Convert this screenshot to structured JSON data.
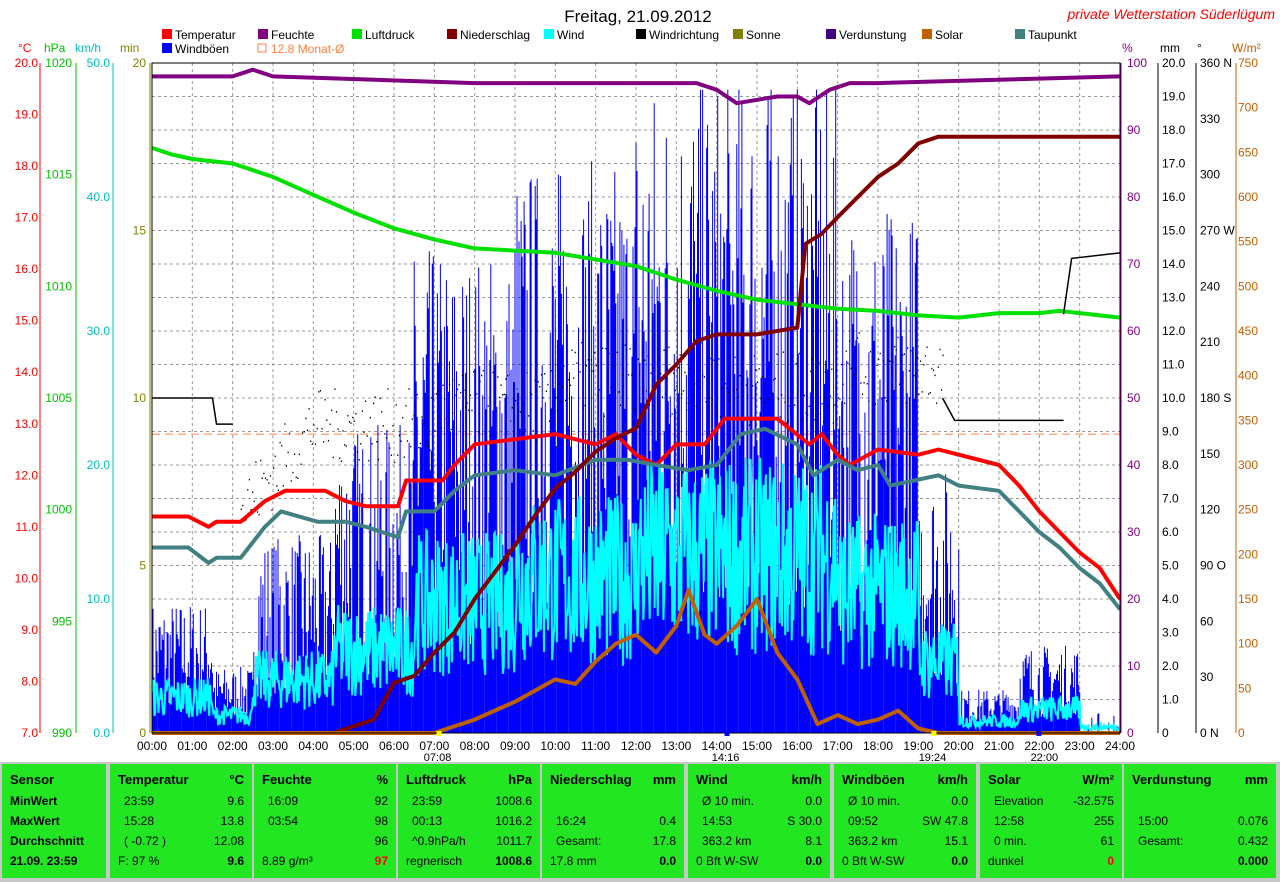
{
  "title": "Freitag, 21.09.2012",
  "station": "private Wetterstation Süderlügum",
  "legend": [
    {
      "label": "Temperatur",
      "color": "#ff0000"
    },
    {
      "label": "Feuchte",
      "color": "#800080"
    },
    {
      "label": "Luftdruck",
      "color": "#00e000"
    },
    {
      "label": "Niederschlag",
      "color": "#800000"
    },
    {
      "label": "Wind",
      "color": "#00ffff"
    },
    {
      "label": "Windrichtung",
      "color": "#000000"
    },
    {
      "label": "Sonne",
      "color": "#808000"
    },
    {
      "label": "Verdunstung",
      "color": "#400080"
    },
    {
      "label": "Solar",
      "color": "#c06000"
    },
    {
      "label": "Taupunkt",
      "color": "#408080"
    },
    {
      "label": "Windböen",
      "color": "#0000ff"
    },
    {
      "label": "12.8 Monat-Ø",
      "color": "#ff8040"
    }
  ],
  "chart_data": {
    "type": "line",
    "x_ticks": [
      "00:00",
      "01:00",
      "02:00",
      "03:00",
      "04:00",
      "05:00",
      "06:00",
      "07:00",
      "08:00",
      "09:00",
      "10:00",
      "11:00",
      "12:00",
      "13:00",
      "14:00",
      "15:00",
      "16:00",
      "17:00",
      "18:00",
      "19:00",
      "20:00",
      "21:00",
      "22:00",
      "23:00",
      "24:00"
    ],
    "x_markers": [
      {
        "label": "07:08",
        "x": 7.13
      },
      {
        "label": "14:16",
        "x": 14.27
      },
      {
        "label": "19:24",
        "x": 19.4
      },
      {
        "label": "22:00",
        "x": 22.0
      }
    ],
    "axes": {
      "temperature": {
        "unit": "°C",
        "ticks": [
          "7.0",
          "8.0",
          "9.0",
          "10.0",
          "11.0",
          "12.0",
          "13.0",
          "14.0",
          "15.0",
          "16.0",
          "17.0",
          "18.0",
          "19.0",
          "20.0"
        ],
        "range": [
          7,
          20
        ],
        "color": "#ff0000"
      },
      "pressure": {
        "unit": "hPa",
        "ticks": [
          "990",
          "995",
          "1000",
          "1005",
          "1010",
          "1015",
          "1020"
        ],
        "range": [
          990,
          1020
        ],
        "color": "#00c000"
      },
      "wind": {
        "unit": "km/h",
        "ticks": [
          "0.0",
          "10.0",
          "20.0",
          "30.0",
          "40.0",
          "50.0"
        ],
        "range": [
          0,
          50
        ],
        "color": "#00c0c0"
      },
      "sun": {
        "unit": "min",
        "ticks": [
          "0",
          "5",
          "10",
          "15",
          "20"
        ],
        "range": [
          0,
          20
        ],
        "color": "#808000"
      },
      "humidity": {
        "unit": "%",
        "ticks": [
          "0",
          "10",
          "20",
          "30",
          "40",
          "50",
          "60",
          "70",
          "80",
          "90",
          "100"
        ],
        "range": [
          0,
          100
        ],
        "color": "#800080"
      },
      "rain": {
        "unit": "mm",
        "ticks": [
          "0",
          "1.0",
          "2.0",
          "3.0",
          "4.0",
          "5.0",
          "6.0",
          "7.0",
          "8.0",
          "9.0",
          "10.0",
          "11.0",
          "12.0",
          "13.0",
          "14.0",
          "15.0",
          "16.0",
          "17.0",
          "18.0",
          "19.0",
          "20.0"
        ],
        "range": [
          0,
          20
        ],
        "color": "#000000"
      },
      "direction": {
        "unit": "°",
        "ticks": [
          "0 N",
          "30",
          "60",
          "90 O",
          "120",
          "150",
          "180 S",
          "210",
          "240",
          "270 W",
          "300",
          "330",
          "360 N"
        ],
        "range": [
          0,
          360
        ],
        "color": "#000000"
      },
      "solar": {
        "unit": "W/m²",
        "ticks": [
          "0",
          "50",
          "100",
          "150",
          "200",
          "250",
          "300",
          "350",
          "400",
          "450",
          "500",
          "550",
          "600",
          "650",
          "700",
          "750"
        ],
        "range": [
          0,
          750
        ],
        "color": "#c06000"
      }
    },
    "series": [
      {
        "name": "Temperatur",
        "axis": "temperature",
        "color": "#ff0000",
        "x": [
          0,
          0.9,
          1.4,
          1.6,
          2.2,
          2.8,
          3.3,
          4.3,
          4.8,
          5.3,
          6.1,
          6.3,
          7.2,
          7.5,
          8.0,
          10.0,
          11.0,
          11.5,
          12.0,
          12.5,
          13.0,
          13.7,
          14.2,
          15.5,
          16.3,
          16.6,
          17.0,
          17.3,
          18.0,
          19.0,
          19.5,
          20.0,
          21.0,
          21.5,
          22.0,
          22.5,
          23.0,
          23.5,
          24.0
        ],
        "values": [
          11.2,
          11.2,
          11.0,
          11.1,
          11.1,
          11.5,
          11.7,
          11.7,
          11.5,
          11.4,
          11.4,
          11.9,
          11.9,
          12.2,
          12.6,
          12.8,
          12.6,
          12.8,
          12.4,
          12.2,
          12.6,
          12.6,
          13.1,
          13.1,
          12.6,
          12.8,
          12.4,
          12.2,
          12.5,
          12.4,
          12.5,
          12.4,
          12.2,
          11.8,
          11.3,
          10.9,
          10.5,
          10.2,
          9.6
        ]
      },
      {
        "name": "Taupunkt",
        "axis": "temperature",
        "color": "#408080",
        "x": [
          0,
          0.9,
          1.4,
          1.6,
          2.2,
          2.8,
          3.2,
          4.1,
          4.8,
          5.3,
          6.1,
          6.3,
          7.0,
          7.5,
          8.0,
          9.0,
          10.0,
          11.0,
          11.8,
          12.5,
          13.3,
          14.0,
          14.6,
          15.2,
          16.0,
          16.4,
          17.0,
          17.5,
          18.0,
          18.3,
          19.5,
          20.0,
          21.0,
          21.5,
          22.0,
          22.5,
          23.0,
          23.5,
          24.0
        ],
        "values": [
          10.6,
          10.6,
          10.3,
          10.4,
          10.4,
          11.0,
          11.3,
          11.1,
          11.1,
          11.0,
          10.8,
          11.3,
          11.3,
          11.7,
          12.0,
          12.1,
          12.0,
          12.3,
          12.3,
          12.2,
          12.1,
          12.2,
          12.8,
          12.9,
          12.6,
          12.0,
          12.3,
          12.1,
          12.2,
          11.8,
          12.0,
          11.8,
          11.7,
          11.3,
          10.9,
          10.6,
          10.2,
          9.9,
          9.4
        ]
      },
      {
        "name": "Feuchte",
        "axis": "humidity",
        "color": "#800080",
        "x": [
          0,
          2.0,
          2.5,
          3.0,
          8.0,
          13.5,
          14.0,
          14.5,
          15.5,
          16.0,
          16.3,
          16.8,
          17.3,
          18.0,
          24.0
        ],
        "values": [
          98,
          98,
          99,
          98,
          97,
          97,
          96,
          94,
          95,
          95,
          94,
          96,
          97,
          97,
          98
        ]
      },
      {
        "name": "Luftdruck",
        "axis": "pressure",
        "color": "#00e000",
        "x": [
          0,
          0.5,
          1.0,
          2.0,
          3.0,
          4.0,
          5.0,
          6.0,
          7.0,
          8.0,
          9.0,
          10.0,
          11.0,
          12.0,
          12.5,
          13.0,
          14.0,
          15.0,
          16.0,
          17.0,
          18.0,
          19.0,
          20.0,
          21.0,
          22.0,
          22.5,
          23.0,
          24.0
        ],
        "values": [
          1016.2,
          1015.9,
          1015.7,
          1015.5,
          1014.9,
          1014.1,
          1013.3,
          1012.6,
          1012.1,
          1011.7,
          1011.6,
          1011.5,
          1011.2,
          1010.9,
          1010.6,
          1010.3,
          1009.8,
          1009.4,
          1009.2,
          1009.0,
          1008.9,
          1008.7,
          1008.6,
          1008.8,
          1008.8,
          1008.9,
          1008.8,
          1008.6
        ]
      },
      {
        "name": "Niederschlag",
        "axis": "rain",
        "color": "#800000",
        "x": [
          0,
          4.5,
          5.0,
          5.5,
          6.0,
          6.5,
          7.0,
          7.5,
          8.0,
          8.5,
          9.0,
          9.5,
          10.0,
          10.5,
          11.0,
          11.5,
          12.0,
          12.5,
          13.0,
          13.5,
          14.0,
          15.0,
          16.0,
          16.2,
          16.6,
          17.0,
          17.5,
          18.0,
          18.5,
          19.0,
          19.5,
          24.0
        ],
        "values": [
          0,
          0,
          0.2,
          0.4,
          1.5,
          1.7,
          2.4,
          3.0,
          4.0,
          4.8,
          5.6,
          6.5,
          7.3,
          7.8,
          8.4,
          8.8,
          9.1,
          10.4,
          11.0,
          11.7,
          11.9,
          11.9,
          12.1,
          14.6,
          14.9,
          15.4,
          16.0,
          16.6,
          17.0,
          17.6,
          17.8,
          17.8
        ]
      },
      {
        "name": "Solar",
        "axis": "solar",
        "color": "#c06000",
        "x": [
          0,
          7.0,
          8.0,
          9.0,
          10.0,
          10.5,
          11.0,
          11.5,
          12.0,
          12.5,
          13.0,
          13.3,
          13.7,
          14.0,
          14.5,
          15.0,
          15.5,
          16.0,
          16.2,
          16.5,
          17.0,
          17.5,
          18.0,
          18.5,
          19.0,
          19.5,
          24.0
        ],
        "values": [
          0,
          0,
          15,
          35,
          60,
          55,
          80,
          100,
          110,
          90,
          120,
          160,
          110,
          100,
          120,
          150,
          90,
          60,
          40,
          10,
          20,
          10,
          15,
          25,
          5,
          0,
          0
        ]
      },
      {
        "name": "Windrichtung",
        "axis": "direction",
        "color": "#000000",
        "x": [
          0,
          1.5,
          1.6,
          2.0,
          2.0,
          24.0
        ],
        "values": [
          180,
          180,
          166,
          166,
          null,
          null
        ]
      }
    ]
  },
  "panel": {
    "sensor": {
      "head": "Sensor",
      "rows": [
        "MinWert",
        "MaxWert",
        "Durchschnitt",
        "21.09. 23:59"
      ]
    },
    "temperatur": {
      "head": "Temperatur",
      "unit": "°C",
      "rows": [
        [
          "23:59",
          "9.6"
        ],
        [
          "15:28",
          "13.8"
        ],
        [
          "( -0.72 )",
          "12.08"
        ],
        [
          "F: 97 %",
          "9.6"
        ]
      ]
    },
    "feuchte": {
      "head": "Feuchte",
      "unit": "%",
      "rows": [
        [
          "16:09",
          "92"
        ],
        [
          "03:54",
          "98"
        ],
        [
          "",
          "96"
        ],
        [
          "8.89 g/m³",
          "97"
        ]
      ]
    },
    "luftdruck": {
      "head": "Luftdruck",
      "unit": "hPa",
      "rows": [
        [
          "23:59",
          "1008.6"
        ],
        [
          "00:13",
          "1016.2"
        ],
        [
          "^0.9hPa/h",
          "1011.7"
        ],
        [
          "regnerisch",
          "1008.6"
        ]
      ]
    },
    "niederschlag": {
      "head": "Niederschlag",
      "unit": "mm",
      "rows": [
        [
          "",
          ""
        ],
        [
          "16:24",
          "0.4"
        ],
        [
          "Gesamt:",
          "17.8"
        ],
        [
          "17.8 mm",
          "0.0"
        ]
      ]
    },
    "wind": {
      "head": "Wind",
      "unit": "km/h",
      "rows": [
        [
          "Ø 10 min.",
          "0.0"
        ],
        [
          "14:53",
          "S 30.0"
        ],
        [
          "363.2 km",
          "8.1"
        ],
        [
          "0 Bft W-SW",
          "0.0"
        ]
      ]
    },
    "windboeen": {
      "head": "Windböen",
      "unit": "km/h",
      "rows": [
        [
          "Ø 10 min.",
          "0.0"
        ],
        [
          "09:52",
          "SW 47.8"
        ],
        [
          "363.2 km",
          "15.1"
        ],
        [
          "0 Bft W-SW",
          "0.0"
        ]
      ]
    },
    "solar": {
      "head": "Solar",
      "unit": "W/m²",
      "rows": [
        [
          "Elevation",
          "-32.575"
        ],
        [
          "12:58",
          "255"
        ],
        [
          "0 min.",
          "61"
        ],
        [
          "dunkel",
          "0"
        ]
      ]
    },
    "verdunstung": {
      "head": "Verdunstung",
      "unit": "mm",
      "rows": [
        [
          "",
          ""
        ],
        [
          "15:00",
          "0.076"
        ],
        [
          "Gesamt:",
          "0.432"
        ],
        [
          "",
          "0.000"
        ]
      ]
    }
  }
}
